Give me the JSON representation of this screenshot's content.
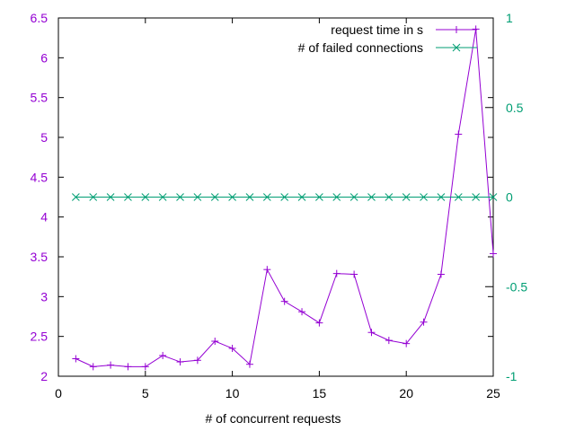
{
  "chart_data": {
    "type": "line",
    "xlabel": "# of concurrent requests",
    "ylabel": "",
    "y2label": "",
    "xlim": [
      0,
      25
    ],
    "ylim": [
      2,
      6.5
    ],
    "y2lim": [
      -1,
      1
    ],
    "grid": false,
    "legend_position": "top-right",
    "x_ticks": [
      "0",
      "5",
      "10",
      "15",
      "20",
      "25"
    ],
    "y_ticks": [
      "2",
      "2.5",
      "3",
      "3.5",
      "4",
      "4.5",
      "5",
      "5.5",
      "6",
      "6.5"
    ],
    "y2_ticks": [
      "-1",
      "-0.5",
      "0",
      "0.5",
      "1"
    ],
    "series": [
      {
        "name": "request time in  s",
        "axis": "left",
        "color": "#9400d3",
        "marker": "plus",
        "x": [
          1,
          2,
          3,
          4,
          5,
          6,
          7,
          8,
          9,
          10,
          11,
          12,
          13,
          14,
          15,
          16,
          17,
          18,
          19,
          20,
          21,
          22,
          23,
          24,
          25
        ],
        "values": [
          2.22,
          2.12,
          2.14,
          2.12,
          2.12,
          2.26,
          2.18,
          2.2,
          2.44,
          2.35,
          2.15,
          3.34,
          2.94,
          2.81,
          2.67,
          3.29,
          3.28,
          2.55,
          2.45,
          2.41,
          2.68,
          3.28,
          5.04,
          6.36,
          3.54
        ]
      },
      {
        "name": "# of failed connections",
        "axis": "right",
        "color": "#009e73",
        "marker": "cross",
        "x": [
          1,
          2,
          3,
          4,
          5,
          6,
          7,
          8,
          9,
          10,
          11,
          12,
          13,
          14,
          15,
          16,
          17,
          18,
          19,
          20,
          21,
          22,
          23,
          24,
          25
        ],
        "values": [
          0,
          0,
          0,
          0,
          0,
          0,
          0,
          0,
          0,
          0,
          0,
          0,
          0,
          0,
          0,
          0,
          0,
          0,
          0,
          0,
          0,
          0,
          0,
          0,
          0
        ]
      }
    ]
  }
}
